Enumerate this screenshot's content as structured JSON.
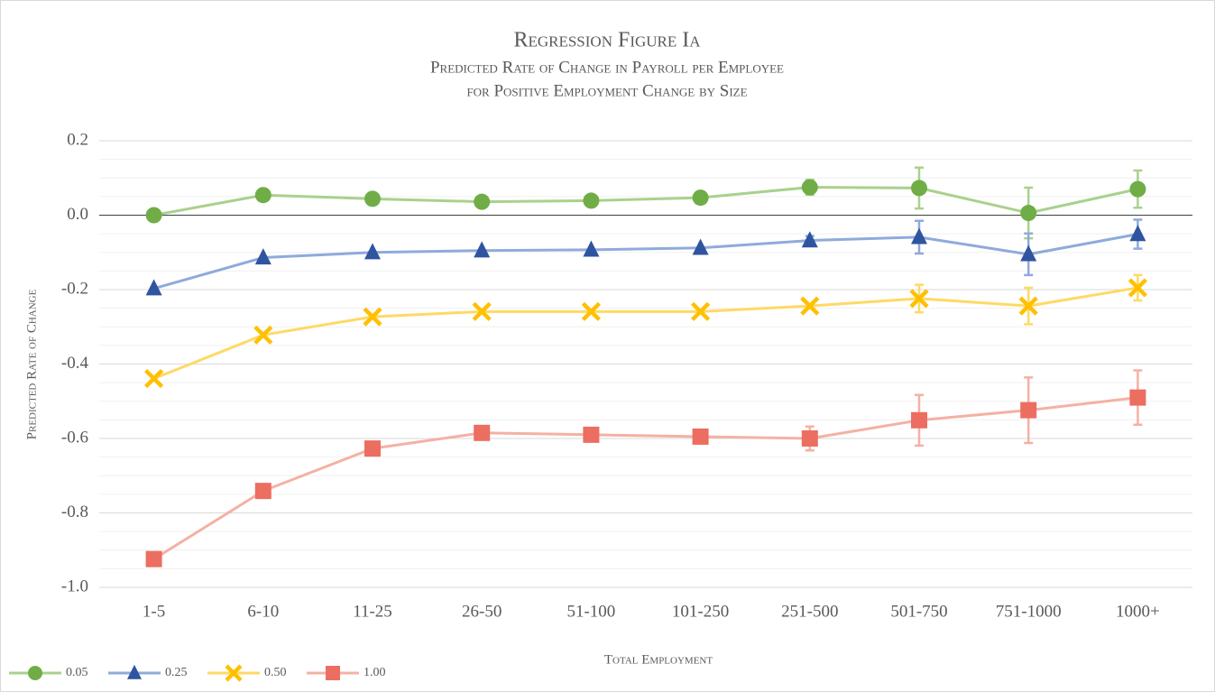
{
  "chart_data": {
    "type": "line",
    "title": "Regression Figure Ia",
    "subtitle": [
      "Predicted Rate of Change in Payroll per Employee",
      "for Positive Employment Change by Size"
    ],
    "x_label": "Total Employment",
    "y_label": "Predicted Rate of Change",
    "categories": [
      "1-5",
      "6-10",
      "11-25",
      "26-50",
      "51-100",
      "101-250",
      "251-500",
      "501-750",
      "751-1000",
      "1000+"
    ],
    "ylim": [
      -1.0,
      0.2
    ],
    "yticks": [
      {
        "value": -1.0,
        "label": "-1.0"
      },
      -0.8,
      -0.6,
      -0.4,
      -0.2,
      {
        "value": 0.0,
        "label": "0.0"
      },
      0.2
    ],
    "grid": true,
    "minor_grid": true,
    "legend": "bottom-left",
    "series": [
      {
        "name": "0.05",
        "color": "#a9d18e",
        "marker_color": "#70ad47",
        "marker": "circle",
        "values": [
          0.0,
          0.054,
          0.044,
          0.036,
          0.039,
          0.047,
          0.075,
          0.073,
          0.006,
          0.07
        ],
        "errors": [
          null,
          null,
          null,
          null,
          null,
          null,
          0.02,
          0.055,
          0.068,
          0.05
        ]
      },
      {
        "name": "0.25",
        "color": "#8faadc",
        "marker_color": "#2f55a0",
        "marker": "triangle",
        "values": [
          -0.197,
          -0.114,
          -0.1,
          -0.095,
          -0.093,
          -0.088,
          -0.068,
          -0.059,
          -0.105,
          -0.051
        ],
        "errors": [
          null,
          null,
          null,
          null,
          null,
          null,
          0.012,
          0.044,
          0.056,
          0.039
        ]
      },
      {
        "name": "0.50",
        "color": "#ffd966",
        "marker_color": "#ffc000",
        "marker": "x",
        "values": [
          -0.439,
          -0.322,
          -0.273,
          -0.259,
          -0.259,
          -0.259,
          -0.244,
          -0.224,
          -0.244,
          -0.195
        ],
        "errors": [
          null,
          null,
          null,
          null,
          null,
          null,
          null,
          0.037,
          0.049,
          0.034
        ]
      },
      {
        "name": "1.00",
        "color": "#f4b1a3",
        "marker_color": "#ec6e60",
        "marker": "square",
        "values": [
          -0.924,
          -0.741,
          -0.627,
          -0.585,
          -0.59,
          -0.595,
          -0.6,
          -0.551,
          -0.524,
          -0.49
        ],
        "errors": [
          null,
          null,
          null,
          null,
          null,
          null,
          0.032,
          0.068,
          0.088,
          0.073
        ]
      }
    ]
  }
}
